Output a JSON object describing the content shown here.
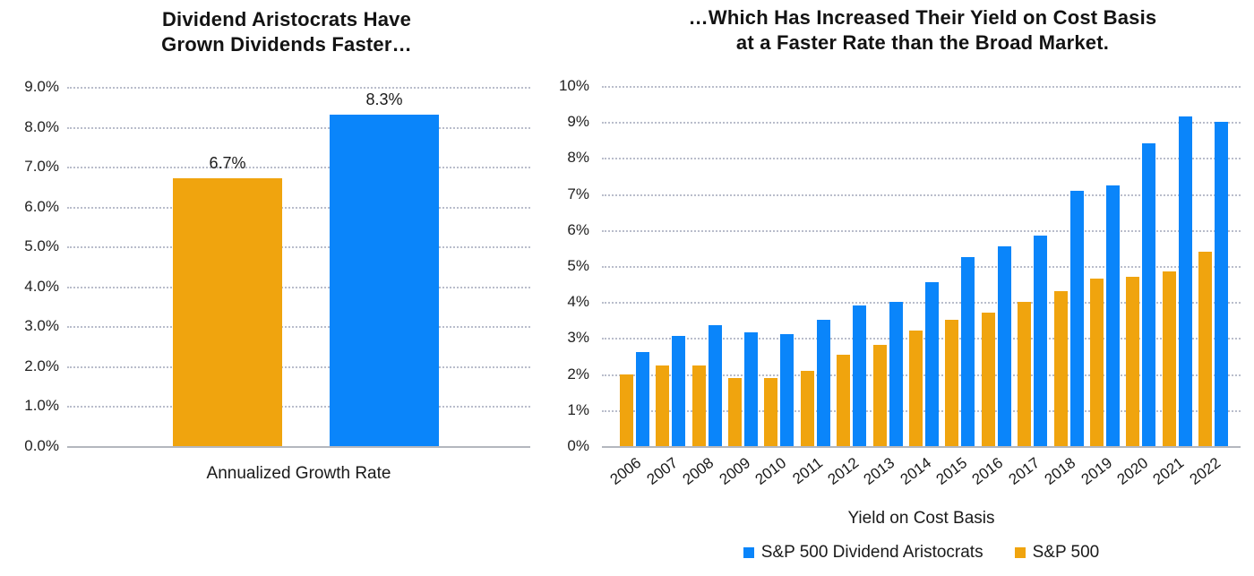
{
  "colors": {
    "aristocrats_blue": "#0A85FA",
    "sp500_orange": "#F0A40E",
    "gridline_gray": "#b9bdcb",
    "axis_gray": "#b4b7be",
    "text_dark": "#1a1a1a"
  },
  "chart_data": [
    {
      "id": "dividend-growth",
      "type": "bar",
      "title_lines": [
        "Dividend Aristocrats Have",
        "Grown Dividends Faster…"
      ],
      "xlabel": "Annualized Growth Rate",
      "ylim": [
        0,
        9
      ],
      "y_tick_labels": [
        "9.0%",
        "8.0%",
        "7.0%",
        "6.0%",
        "5.0%",
        "4.0%",
        "3.0%",
        "2.0%",
        "1.0%",
        "0.0%"
      ],
      "grid": "horizontal dotted, solid baseline at 0",
      "legend_position": "none",
      "bars": [
        {
          "series": "S&P 500",
          "color_key": "sp500_orange",
          "value": 6.7,
          "label": "6.7%"
        },
        {
          "series": "S&P 500 Dividend Aristocrats",
          "color_key": "aristocrats_blue",
          "value": 8.3,
          "label": "8.3%"
        }
      ]
    },
    {
      "id": "yield-on-cost",
      "type": "bar",
      "title_lines": [
        "…Which Has Increased Their Yield on Cost Basis",
        "at a Faster Rate than the Broad Market."
      ],
      "xlabel": "Yield on Cost Basis",
      "ylim": [
        0,
        10
      ],
      "y_tick_labels": [
        "10%",
        "9%",
        "8%",
        "7%",
        "6%",
        "5%",
        "4%",
        "3%",
        "2%",
        "1%",
        "0%"
      ],
      "grid": "horizontal dotted, solid baseline at 0",
      "legend_position": "bottom",
      "categories": [
        "2006",
        "2007",
        "2008",
        "2009",
        "2010",
        "2011",
        "2012",
        "2013",
        "2014",
        "2015",
        "2016",
        "2017",
        "2018",
        "2019",
        "2020",
        "2021",
        "2022"
      ],
      "series": [
        {
          "name": "S&P 500",
          "color_key": "sp500_orange",
          "values": [
            2.0,
            2.25,
            2.25,
            1.9,
            1.9,
            2.1,
            2.55,
            2.8,
            3.2,
            3.5,
            3.7,
            4.0,
            4.3,
            4.65,
            4.7,
            4.85,
            5.4
          ]
        },
        {
          "name": "S&P 500 Dividend Aristocrats",
          "color_key": "aristocrats_blue",
          "values": [
            2.6,
            3.05,
            3.35,
            3.15,
            3.1,
            3.5,
            3.9,
            4.0,
            4.55,
            5.25,
            5.55,
            5.85,
            7.1,
            7.25,
            8.4,
            9.15,
            9.0
          ]
        }
      ],
      "legend": [
        {
          "label": "S&P 500 Dividend Aristocrats",
          "color_key": "aristocrats_blue"
        },
        {
          "label": "S&P 500",
          "color_key": "sp500_orange"
        }
      ]
    }
  ]
}
